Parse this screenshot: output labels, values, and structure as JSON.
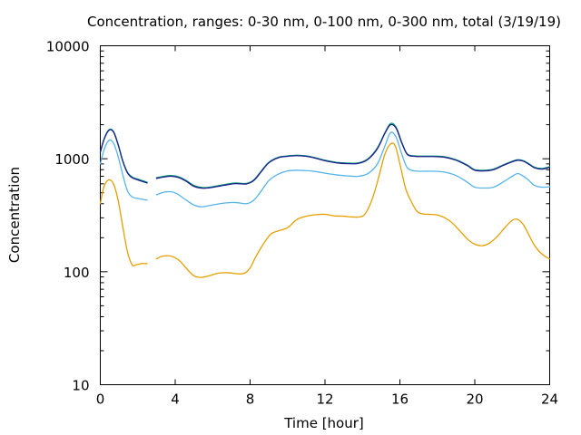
{
  "chart_data": {
    "type": "line",
    "title": "Concentration, ranges: 0-30 nm, 0-100 nm, 0-300 nm, total (3/19/19)",
    "xlabel": "Time [hour]",
    "ylabel": "Concentration",
    "xlim": [
      0,
      24
    ],
    "ylim": [
      10,
      10000
    ],
    "yscale": "log",
    "grid": false,
    "legend": "none",
    "xticks": [
      "0",
      "4",
      "8",
      "12",
      "16",
      "20",
      "24"
    ],
    "yticks": [
      "10",
      "100",
      "1000",
      "10000"
    ],
    "series": [
      {
        "color": "#e69f00",
        "segments": [
          {
            "x": [
              0.0,
              0.2,
              0.45,
              0.7,
              0.95,
              1.2,
              1.45,
              1.7,
              1.9,
              2.2,
              2.5
            ],
            "y": [
              400,
              570,
              650,
              600,
              430,
              250,
              150,
              115,
              115,
              118,
              118
            ]
          },
          {
            "x": [
              3.0,
              3.3,
              3.7,
              4.0,
              4.3,
              4.6,
              5.0,
              5.4,
              5.8,
              6.3,
              6.8,
              7.3,
              7.7,
              8.0,
              8.3,
              8.7,
              9.1,
              9.5,
              10.0,
              10.5,
              11.0,
              11.5,
              12.0,
              12.5,
              13.0,
              13.5,
              14.0,
              14.3,
              14.6,
              14.9,
              15.2,
              15.5,
              15.75,
              16.0,
              16.3,
              16.6,
              16.9,
              17.2,
              17.6,
              18.0,
              18.4,
              18.8,
              19.2,
              19.6,
              20.0,
              20.4,
              20.8,
              21.2,
              21.6,
              22.0,
              22.3,
              22.6,
              22.9,
              23.2,
              23.5,
              23.8,
              24.0
            ],
            "y": [
              130,
              137,
              138,
              133,
              122,
              107,
              92,
              89,
              92,
              97,
              98,
              96,
              97,
              108,
              135,
              175,
              215,
              230,
              245,
              290,
              310,
              320,
              322,
              312,
              310,
              305,
              310,
              360,
              480,
              720,
              1100,
              1350,
              1300,
              900,
              550,
              420,
              345,
              325,
              322,
              318,
              300,
              270,
              230,
              195,
              175,
              170,
              180,
              205,
              245,
              285,
              290,
              260,
              210,
              170,
              148,
              135,
              130
            ]
          }
        ]
      },
      {
        "color": "#56b4e9",
        "segments": [
          {
            "x": [
              0.0,
              0.2,
              0.45,
              0.7,
              0.95,
              1.2,
              1.45,
              1.7,
              2.0,
              2.5
            ],
            "y": [
              900,
              1200,
              1450,
              1380,
              1050,
              720,
              520,
              460,
              445,
              430
            ]
          },
          {
            "x": [
              3.0,
              3.4,
              3.8,
              4.1,
              4.5,
              5.0,
              5.4,
              6.0,
              6.6,
              7.2,
              7.8,
              8.2,
              8.6,
              9.0,
              9.5,
              10.0,
              10.5,
              11.0,
              11.5,
              12.0,
              12.6,
              13.2,
              13.8,
              14.3,
              14.8,
              15.2,
              15.5,
              15.8,
              16.1,
              16.4,
              16.8,
              17.2,
              17.8,
              18.4,
              19.0,
              19.6,
              20.0,
              20.5,
              21.0,
              21.5,
              22.0,
              22.3,
              22.6,
              22.9,
              23.2,
              23.6,
              24.0
            ],
            "y": [
              480,
              505,
              510,
              490,
              440,
              390,
              375,
              390,
              405,
              410,
              400,
              430,
              520,
              640,
              730,
              780,
              790,
              785,
              770,
              745,
              720,
              705,
              700,
              740,
              900,
              1300,
              1700,
              1550,
              1100,
              830,
              780,
              775,
              775,
              760,
              710,
              620,
              560,
              550,
              560,
              620,
              700,
              740,
              700,
              640,
              580,
              560,
              565
            ]
          }
        ]
      },
      {
        "color": "#009e73",
        "segments": [
          {
            "x": [
              0.0,
              0.2,
              0.45,
              0.7,
              0.95,
              1.2,
              1.45,
              1.7,
              2.0,
              2.5
            ],
            "y": [
              1150,
              1500,
              1800,
              1750,
              1350,
              960,
              760,
              690,
              660,
              620
            ]
          },
          {
            "x": [
              3.0,
              3.4,
              3.8,
              4.2,
              4.6,
              5.0,
              5.5,
              6.0,
              6.6,
              7.2,
              7.8,
              8.2,
              8.6,
              9.0,
              9.5,
              10.0,
              10.5,
              11.0,
              11.5,
              12.0,
              12.6,
              13.2,
              13.8,
              14.3,
              14.8,
              15.2,
              15.5,
              15.8,
              16.1,
              16.4,
              16.8,
              17.2,
              17.8,
              18.4,
              19.0,
              19.6,
              20.0,
              20.5,
              21.0,
              21.5,
              22.0,
              22.3,
              22.6,
              22.9,
              23.2,
              23.6,
              24.0
            ],
            "y": [
              680,
              700,
              710,
              690,
              640,
              580,
              555,
              565,
              590,
              610,
              605,
              650,
              780,
              930,
              1030,
              1060,
              1075,
              1060,
              1020,
              970,
              930,
              915,
              920,
              1000,
              1250,
              1700,
              2050,
              1900,
              1400,
              1100,
              1060,
              1055,
              1055,
              1040,
              980,
              880,
              800,
              790,
              810,
              880,
              950,
              980,
              960,
              900,
              840,
              820,
              850
            ]
          }
        ]
      },
      {
        "color": "#1f1f8f",
        "segments": [
          {
            "x": [
              0.0,
              0.2,
              0.45,
              0.7,
              0.95,
              1.2,
              1.45,
              1.7,
              2.0,
              2.5
            ],
            "y": [
              1140,
              1480,
              1780,
              1730,
              1330,
              950,
              750,
              680,
              650,
              610
            ]
          },
          {
            "x": [
              3.0,
              3.4,
              3.8,
              4.2,
              4.6,
              5.0,
              5.5,
              6.0,
              6.6,
              7.2,
              7.8,
              8.2,
              8.6,
              9.0,
              9.5,
              10.0,
              10.5,
              11.0,
              11.5,
              12.0,
              12.6,
              13.2,
              13.8,
              14.3,
              14.8,
              15.2,
              15.5,
              15.8,
              16.1,
              16.4,
              16.8,
              17.2,
              17.8,
              18.4,
              19.0,
              19.6,
              20.0,
              20.5,
              21.0,
              21.5,
              22.0,
              22.3,
              22.6,
              22.9,
              23.2,
              23.6,
              24.0
            ],
            "y": [
              670,
              690,
              700,
              680,
              630,
              570,
              548,
              558,
              582,
              602,
              598,
              642,
              770,
              920,
              1020,
              1050,
              1065,
              1050,
              1010,
              960,
              920,
              905,
              910,
              990,
              1230,
              1680,
              2000,
              1860,
              1380,
              1090,
              1050,
              1045,
              1045,
              1030,
              970,
              870,
              790,
              780,
              800,
              870,
              940,
              970,
              950,
              890,
              830,
              810,
              840
            ]
          }
        ]
      }
    ]
  }
}
